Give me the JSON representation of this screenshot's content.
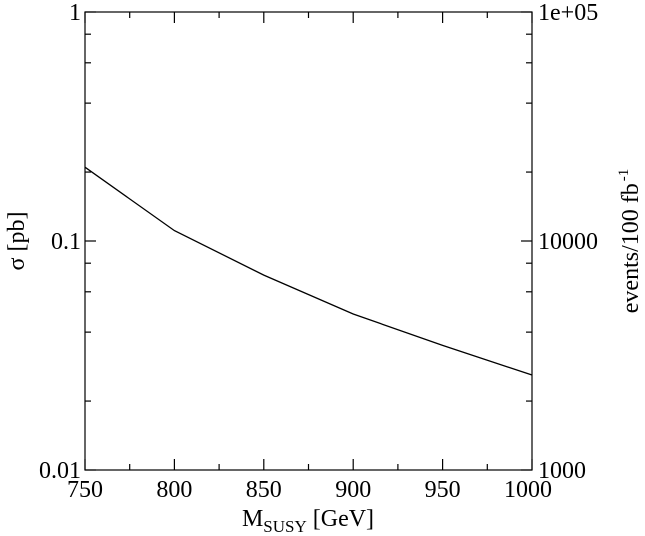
{
  "chart_data": {
    "type": "line",
    "title": "",
    "xlabel": {
      "main": "M",
      "sub": "SUSY",
      "unit": "[GeV]"
    },
    "ylabel_left": "σ [pb]",
    "ylabel_right": {
      "main": "events/100 fb",
      "sup": "-1"
    },
    "xlim": [
      750,
      1000
    ],
    "ylim_left": [
      0.01,
      1
    ],
    "ylim_right": [
      1000,
      100000
    ],
    "yscale": "log",
    "grid": false,
    "x_ticks": [
      "750",
      "800",
      "850",
      "900",
      "950",
      "1000"
    ],
    "x_tick_values": [
      750,
      800,
      850,
      900,
      950,
      1000
    ],
    "y_left_ticks": [
      "0.01",
      "0.1",
      "1"
    ],
    "y_left_tick_values": [
      0.01,
      0.1,
      1
    ],
    "y_right_ticks": [
      "1000",
      "10000",
      "1e+05"
    ],
    "y_right_tick_values": [
      1000,
      10000,
      100000
    ],
    "series": [
      {
        "x": [
          750,
          800,
          850,
          900,
          950,
          1000
        ],
        "y": [
          0.21,
          0.111,
          0.071,
          0.048,
          0.035,
          0.026
        ],
        "color": "#000000"
      }
    ]
  }
}
